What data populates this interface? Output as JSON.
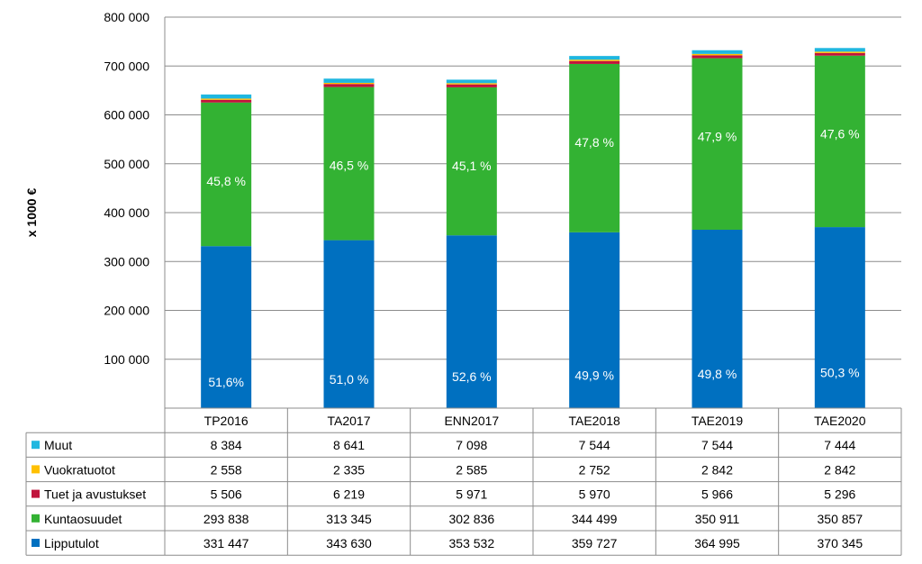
{
  "chart_data": {
    "type": "bar",
    "stacked": true,
    "title": "",
    "ylabel": "x 1000 €",
    "ylim": [
      0,
      800000
    ],
    "yticks": [
      "",
      "100 000",
      "200 000",
      "300 000",
      "400 000",
      "500 000",
      "600 000",
      "700 000",
      "800 000"
    ],
    "grid": true,
    "legend": "data-table-left",
    "categories": [
      "TP2016",
      "TA2017",
      "ENN2017",
      "TAE2018",
      "TAE2019",
      "TAE2020"
    ],
    "series": [
      {
        "name": "Lipputulot",
        "color": "#0070c0",
        "values": [
          331447,
          343630,
          353532,
          359727,
          364995,
          370345
        ],
        "table": [
          "331 447",
          "343 630",
          "353 532",
          "359 727",
          "364 995",
          "370 345"
        ],
        "labels": [
          "51,6%",
          "51,0 %",
          "52,6 %",
          "49,9 %",
          "49,8 %",
          "50,3 %"
        ]
      },
      {
        "name": "Kuntaosuudet",
        "color": "#33b233",
        "values": [
          293838,
          313345,
          302836,
          344499,
          350911,
          350857
        ],
        "table": [
          "293 838",
          "313 345",
          "302 836",
          "344 499",
          "350 911",
          "350 857"
        ],
        "labels": [
          "45,8 %",
          "46,5 %",
          "45,1 %",
          "47,8 %",
          "47,9 %",
          "47,6 %"
        ]
      },
      {
        "name": "Tuet ja avustukset",
        "color": "#c0143c",
        "values": [
          5506,
          6219,
          5971,
          5970,
          5966,
          5296
        ],
        "table": [
          "5 506",
          "6 219",
          "5 971",
          "5 970",
          "5 966",
          "5 296"
        ]
      },
      {
        "name": "Vuokratuotot",
        "color": "#ffc000",
        "values": [
          2558,
          2335,
          2585,
          2752,
          2842,
          2842
        ],
        "table": [
          "2 558",
          "2 335",
          "2 585",
          "2 752",
          "2 842",
          "2 842"
        ]
      },
      {
        "name": "Muut",
        "color": "#1fb7e0",
        "values": [
          8384,
          8641,
          7098,
          7544,
          7544,
          7444
        ],
        "table": [
          "8 384",
          "8 641",
          "7 098",
          "7 544",
          "7 544",
          "7 444"
        ]
      }
    ],
    "table_row_order": [
      "Muut",
      "Vuokratuotot",
      "Tuet ja avustukset",
      "Kuntaosuudet",
      "Lipputulot"
    ]
  }
}
